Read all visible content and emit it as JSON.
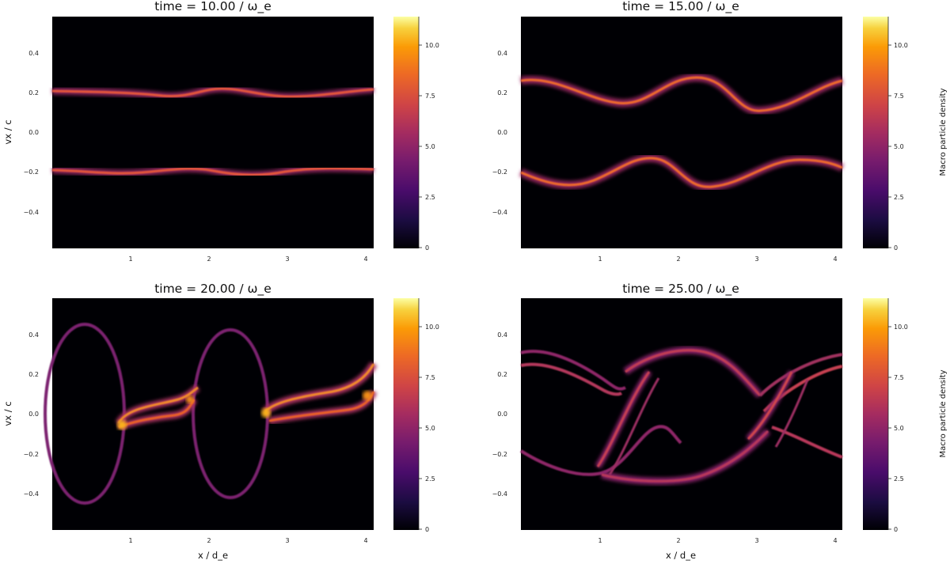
{
  "figure": {
    "ylabel": "vx / c",
    "xlabel": "x / d_e",
    "colorbar_label": "Macro particle density"
  },
  "chart_data": [
    {
      "type": "heatmap",
      "title": "time = 10.00  / ω_e",
      "x_ticks": [
        "1",
        "2",
        "3",
        "4"
      ],
      "x_tick_values": [
        1,
        2,
        3,
        4
      ],
      "y_ticks": [
        "0.4",
        "0.2",
        "0.0",
        "−0.2",
        "−0.4"
      ],
      "y_tick_values": [
        0.4,
        0.2,
        0.0,
        -0.2,
        -0.4
      ],
      "xlim": [
        0.0,
        4.1
      ],
      "ylim": [
        -0.58,
        0.58
      ],
      "colorbar": {
        "ticks": [
          "10.0",
          "7.5",
          "5.0",
          "2.5",
          "0"
        ],
        "tick_values": [
          10,
          7.5,
          5,
          2.5,
          0
        ],
        "range": [
          0,
          11.3
        ],
        "colormap": "inferno"
      },
      "beams": [
        {
          "center": 0.205,
          "amplitude": 0.018,
          "phase": 0.0,
          "peak_density": 7.5
        },
        {
          "center": -0.205,
          "amplitude": 0.018,
          "phase": 3.14,
          "peak_density": 7.5
        }
      ]
    },
    {
      "type": "heatmap",
      "title": "time = 15.00  / ω_e",
      "x_ticks": [
        "1",
        "2",
        "3",
        "4"
      ],
      "x_tick_values": [
        1,
        2,
        3,
        4
      ],
      "y_ticks": [
        "0.4",
        "0.2",
        "0.0",
        "−0.2",
        "−0.4"
      ],
      "y_tick_values": [
        0.4,
        0.2,
        0.0,
        -0.2,
        -0.4
      ],
      "xlim": [
        0.0,
        4.1
      ],
      "ylim": [
        -0.58,
        0.58
      ],
      "colorbar": {
        "ticks": [
          "10.0",
          "7.5",
          "5.0",
          "2.5",
          "0"
        ],
        "tick_values": [
          10,
          7.5,
          5,
          2.5,
          0
        ],
        "range": [
          0,
          11.3
        ],
        "colormap": "inferno"
      },
      "beams": [
        {
          "center": 0.2,
          "amplitude": 0.065,
          "phase": 0.0,
          "peak_density": 8.0
        },
        {
          "center": -0.2,
          "amplitude": 0.075,
          "phase": 3.14,
          "peak_density": 7.5
        }
      ]
    },
    {
      "type": "heatmap",
      "title": "time = 20.00  / ω_e",
      "x_ticks": [
        "1",
        "2",
        "3",
        "4"
      ],
      "x_tick_values": [
        1,
        2,
        3,
        4
      ],
      "y_ticks": [
        "0.4",
        "0.2",
        "0.0",
        "−0.2",
        "−0.4"
      ],
      "y_tick_values": [
        0.4,
        0.2,
        0.0,
        -0.2,
        -0.4
      ],
      "xlim": [
        0.0,
        4.1
      ],
      "ylim": [
        -0.58,
        0.58
      ],
      "colorbar": {
        "ticks": [
          "10.0",
          "7.5",
          "5.0",
          "2.5",
          "0"
        ],
        "tick_values": [
          10,
          7.5,
          5,
          2.5,
          0
        ],
        "range": [
          0,
          11.3
        ],
        "colormap": "inferno"
      },
      "vortices": [
        {
          "x_center": 0.4,
          "vx_half_height": 0.46
        },
        {
          "x_center": 2.25,
          "vx_half_height": 0.43
        }
      ],
      "peak_density": 10.0
    },
    {
      "type": "heatmap",
      "title": "time = 25.00  / ω_e",
      "x_ticks": [
        "1",
        "2",
        "3",
        "4"
      ],
      "x_tick_values": [
        1,
        2,
        3,
        4
      ],
      "y_ticks": [
        "0.4",
        "0.2",
        "0.0",
        "−0.2",
        "−0.4"
      ],
      "y_tick_values": [
        0.4,
        0.2,
        0.0,
        -0.2,
        -0.4
      ],
      "xlim": [
        0.0,
        4.1
      ],
      "ylim": [
        -0.58,
        0.58
      ],
      "colorbar": {
        "ticks": [
          "10.0",
          "7.5",
          "5.0",
          "2.5",
          "0"
        ],
        "tick_values": [
          10,
          7.5,
          5,
          2.5,
          0
        ],
        "range": [
          0,
          11.3
        ],
        "colormap": "inferno"
      },
      "beams": [
        {
          "center": 0.13,
          "amplitude": 0.17,
          "phase": 0.0,
          "peak_density": 6.5
        },
        {
          "center": -0.13,
          "amplitude": 0.17,
          "phase": 3.14,
          "peak_density": 6.5
        }
      ],
      "peak_density": 7.0
    }
  ]
}
